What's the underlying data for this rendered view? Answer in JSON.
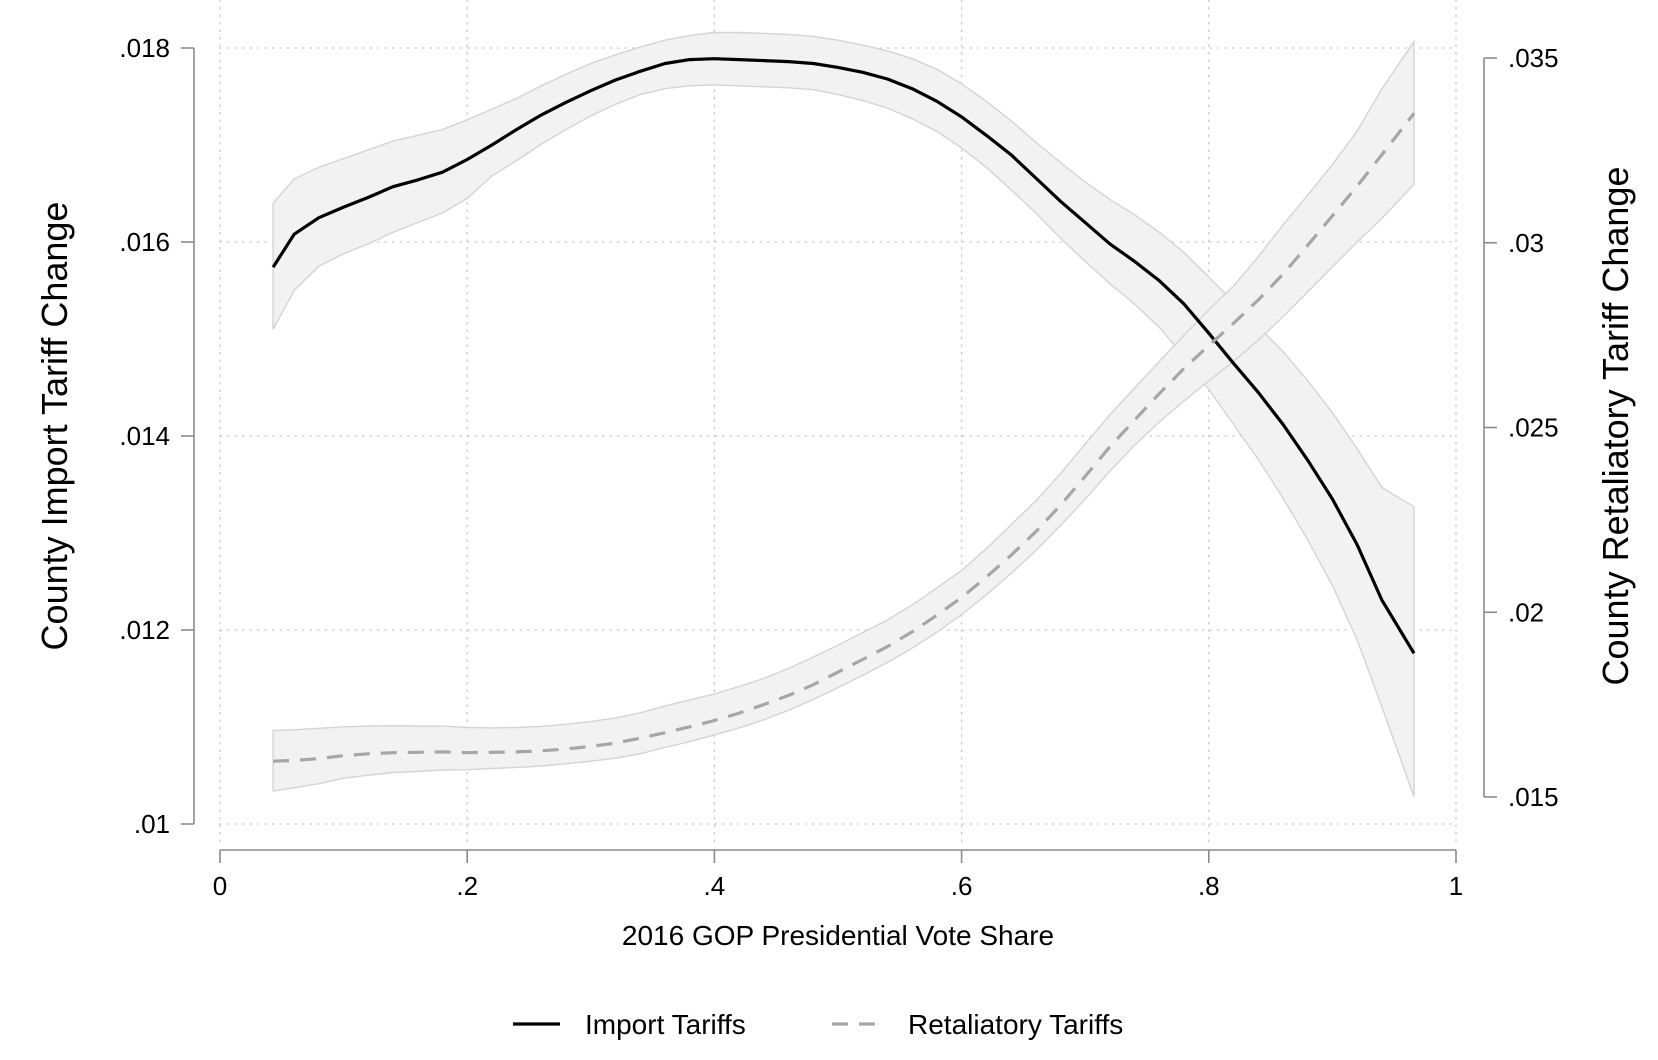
{
  "chart_data": {
    "type": "line",
    "xlabel": "2016 GOP Presidential Vote Share",
    "ylabel_left": "County Import Tariff Change",
    "ylabel_right": "County Retaliatory Tariff Change",
    "xlim": [
      0,
      1
    ],
    "ylim_left": [
      0.01,
      0.018
    ],
    "ylim_right": [
      0.015,
      0.035
    ],
    "x_ticks": [
      0,
      0.2,
      0.4,
      0.6,
      0.8,
      1
    ],
    "x_tick_labels": [
      "0",
      ".2",
      ".4",
      ".6",
      ".8",
      "1"
    ],
    "y_left_ticks": [
      0.01,
      0.012,
      0.014,
      0.016,
      0.018
    ],
    "y_left_tick_labels": [
      ".01",
      ".012",
      ".014",
      ".016",
      ".018"
    ],
    "y_right_ticks": [
      0.015,
      0.02,
      0.025,
      0.03,
      0.035
    ],
    "y_right_tick_labels": [
      ".015",
      ".02",
      ".025",
      ".03",
      ".035"
    ],
    "grid": true,
    "legend_position": "bottom",
    "series": [
      {
        "name": "Import Tariffs",
        "axis": "left",
        "color": "#000000",
        "style": "solid",
        "x": [
          0.043,
          0.06,
          0.08,
          0.1,
          0.12,
          0.14,
          0.16,
          0.18,
          0.2,
          0.22,
          0.24,
          0.26,
          0.28,
          0.3,
          0.32,
          0.34,
          0.36,
          0.38,
          0.4,
          0.42,
          0.44,
          0.46,
          0.48,
          0.5,
          0.52,
          0.54,
          0.56,
          0.58,
          0.6,
          0.62,
          0.64,
          0.66,
          0.68,
          0.7,
          0.72,
          0.74,
          0.76,
          0.78,
          0.8,
          0.82,
          0.84,
          0.86,
          0.88,
          0.9,
          0.92,
          0.94,
          0.966
        ],
        "y": [
          0.01574,
          0.01608,
          0.01625,
          0.01636,
          0.01646,
          0.01657,
          0.01664,
          0.01672,
          0.01685,
          0.017,
          0.01716,
          0.01731,
          0.01744,
          0.01756,
          0.01767,
          0.01776,
          0.01784,
          0.01788,
          0.01789,
          0.01788,
          0.01787,
          0.01786,
          0.01784,
          0.0178,
          0.01775,
          0.01768,
          0.01758,
          0.01745,
          0.01729,
          0.0171,
          0.0169,
          0.01666,
          0.01642,
          0.0162,
          0.01598,
          0.0158,
          0.0156,
          0.01536,
          0.01506,
          0.01475,
          0.01445,
          0.01412,
          0.01375,
          0.01335,
          0.01288,
          0.01231,
          0.01176
        ],
        "ci_low": [
          0.0151,
          0.0155,
          0.01575,
          0.01588,
          0.01598,
          0.0161,
          0.0162,
          0.0163,
          0.01645,
          0.01668,
          0.01684,
          0.01701,
          0.01716,
          0.0173,
          0.01742,
          0.01752,
          0.01758,
          0.01761,
          0.01762,
          0.01761,
          0.0176,
          0.01759,
          0.01757,
          0.01752,
          0.01746,
          0.01738,
          0.01727,
          0.01714,
          0.01697,
          0.01677,
          0.01654,
          0.0163,
          0.01604,
          0.0158,
          0.01557,
          0.01536,
          0.01512,
          0.01482,
          0.01448,
          0.01412,
          0.01376,
          0.01336,
          0.01293,
          0.01246,
          0.0119,
          0.01121,
          0.01028
        ],
        "ci_high": [
          0.0164,
          0.01665,
          0.01677,
          0.01686,
          0.01695,
          0.01704,
          0.0171,
          0.01716,
          0.01726,
          0.01737,
          0.01748,
          0.01761,
          0.01773,
          0.01784,
          0.01793,
          0.01801,
          0.01808,
          0.01813,
          0.01816,
          0.01816,
          0.01815,
          0.01814,
          0.01812,
          0.01808,
          0.01803,
          0.01797,
          0.01789,
          0.01778,
          0.01763,
          0.01745,
          0.01725,
          0.01703,
          0.01682,
          0.01662,
          0.01644,
          0.01628,
          0.0161,
          0.01589,
          0.01564,
          0.01538,
          0.01513,
          0.01487,
          0.01457,
          0.01424,
          0.01387,
          0.01347,
          0.01327
        ]
      },
      {
        "name": "Retaliatory Tariffs",
        "axis": "right",
        "color": "#a6a6a6",
        "style": "dashed",
        "x": [
          0.043,
          0.06,
          0.08,
          0.1,
          0.12,
          0.14,
          0.16,
          0.18,
          0.2,
          0.22,
          0.24,
          0.26,
          0.28,
          0.3,
          0.32,
          0.34,
          0.36,
          0.38,
          0.4,
          0.42,
          0.44,
          0.46,
          0.48,
          0.5,
          0.52,
          0.54,
          0.56,
          0.58,
          0.6,
          0.62,
          0.64,
          0.66,
          0.68,
          0.7,
          0.72,
          0.74,
          0.76,
          0.78,
          0.8,
          0.82,
          0.84,
          0.86,
          0.88,
          0.9,
          0.92,
          0.94,
          0.966
        ],
        "y": [
          0.01597,
          0.01599,
          0.01604,
          0.01612,
          0.01617,
          0.0162,
          0.01621,
          0.01622,
          0.0162,
          0.01621,
          0.01622,
          0.01625,
          0.0163,
          0.01637,
          0.01646,
          0.01659,
          0.01674,
          0.0169,
          0.01707,
          0.01727,
          0.0175,
          0.01775,
          0.01804,
          0.01838,
          0.01872,
          0.01907,
          0.01947,
          0.01992,
          0.0204,
          0.02095,
          0.02154,
          0.02218,
          0.0229,
          0.02368,
          0.02448,
          0.0252,
          0.02592,
          0.0266,
          0.02722,
          0.02782,
          0.02845,
          0.02915,
          0.02993,
          0.03073,
          0.03153,
          0.03238,
          0.0335
        ],
        "ci_low": [
          0.01516,
          0.01525,
          0.01536,
          0.01551,
          0.01559,
          0.01566,
          0.01569,
          0.01573,
          0.01574,
          0.01577,
          0.0158,
          0.01584,
          0.0159,
          0.01597,
          0.01605,
          0.01617,
          0.01634,
          0.0165,
          0.01668,
          0.01687,
          0.01709,
          0.01735,
          0.01764,
          0.01796,
          0.01829,
          0.01864,
          0.01903,
          0.01946,
          0.01994,
          0.02047,
          0.02105,
          0.02167,
          0.02235,
          0.02306,
          0.02382,
          0.02452,
          0.02515,
          0.02572,
          0.02626,
          0.02679,
          0.02736,
          0.028,
          0.02867,
          0.02935,
          0.03002,
          0.03066,
          0.03158
        ],
        "ci_high": [
          0.0168,
          0.01682,
          0.01686,
          0.0169,
          0.01692,
          0.01693,
          0.01692,
          0.01692,
          0.01688,
          0.01687,
          0.01688,
          0.01691,
          0.01697,
          0.01704,
          0.01714,
          0.01728,
          0.01746,
          0.01763,
          0.01779,
          0.01799,
          0.01821,
          0.01848,
          0.01879,
          0.01911,
          0.01945,
          0.01979,
          0.0202,
          0.02066,
          0.02113,
          0.02172,
          0.02237,
          0.02301,
          0.02375,
          0.02456,
          0.02534,
          0.02607,
          0.02679,
          0.0275,
          0.02818,
          0.02883,
          0.02962,
          0.03048,
          0.03129,
          0.03212,
          0.03302,
          0.03416,
          0.03544
        ]
      }
    ]
  }
}
